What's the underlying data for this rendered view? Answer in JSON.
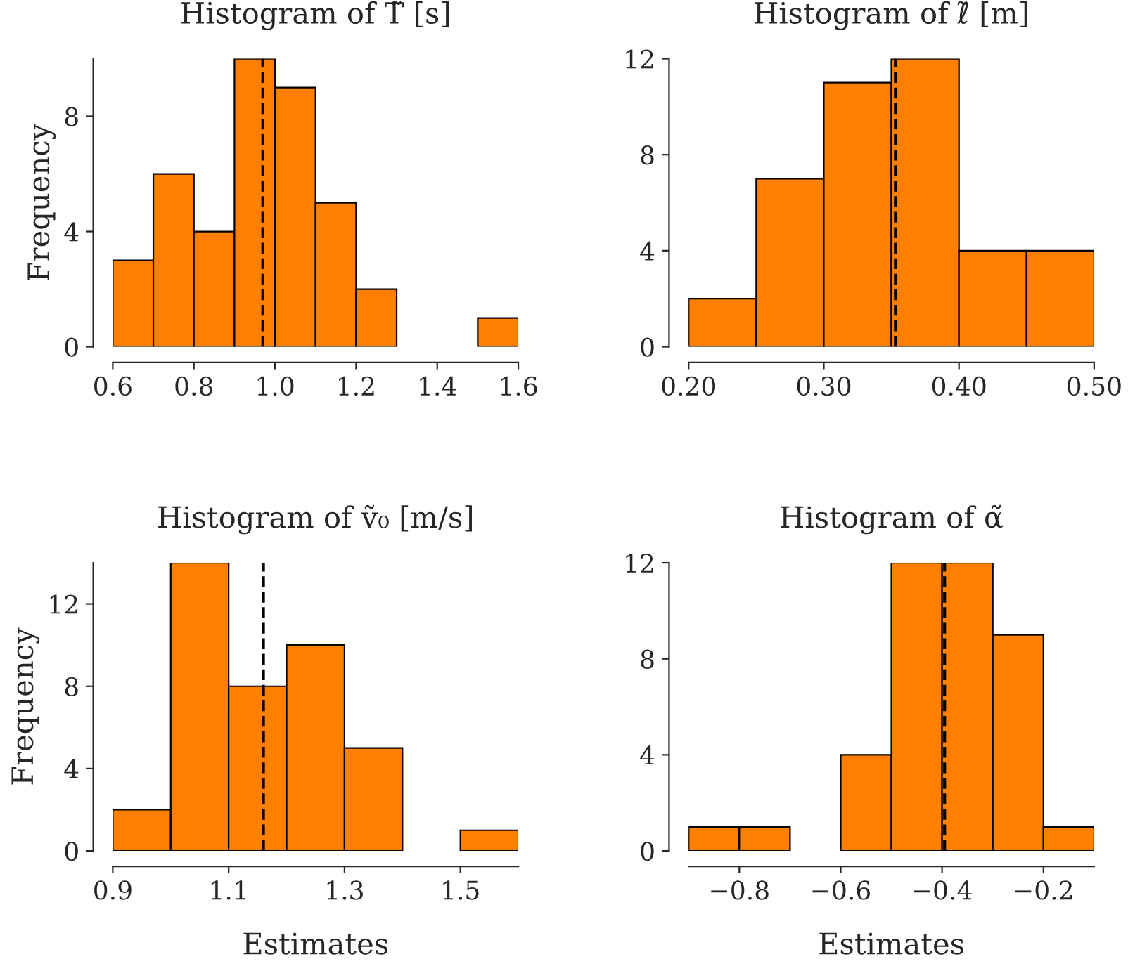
{
  "chart_data": [
    {
      "type": "histogram",
      "title": "Histogram of T̃ [s]",
      "ylabel": "Frequency",
      "color": "#ff8000",
      "bins": [
        0.6,
        0.7,
        0.8,
        0.9,
        1.0,
        1.1,
        1.2,
        1.3,
        1.4,
        1.5,
        1.6
      ],
      "values": [
        3,
        6,
        4,
        10,
        9,
        5,
        2,
        0,
        0,
        1
      ],
      "xlim": [
        0.6,
        1.6
      ],
      "ylim": [
        0,
        10
      ],
      "xticks": [
        0.6,
        0.8,
        {
          "value": 1.0,
          "label": "1.0"
        },
        1.2,
        1.4,
        1.6
      ],
      "yticks": [
        0,
        4,
        8
      ],
      "ref_lines": [
        {
          "axis": "x",
          "value": 0.97,
          "color": "#000000",
          "line_style": "dashed"
        }
      ],
      "grid": false,
      "legend": false
    },
    {
      "type": "histogram",
      "title": "Histogram of ℓ̃ [m]",
      "color": "#ff8000",
      "bins": [
        0.2,
        0.25,
        0.3,
        0.35,
        0.4,
        0.45,
        0.5
      ],
      "values": [
        2,
        7,
        11,
        12,
        4,
        4
      ],
      "xlim": [
        0.2,
        0.5
      ],
      "ylim": [
        0,
        12
      ],
      "xticks": [
        {
          "value": 0.2,
          "label": "0.20"
        },
        {
          "value": 0.3,
          "label": "0.30"
        },
        {
          "value": 0.4,
          "label": "0.40"
        },
        {
          "value": 0.5,
          "label": "0.50"
        }
      ],
      "yticks": [
        0,
        4,
        8,
        12
      ],
      "ref_lines": [
        {
          "axis": "x",
          "value": 0.353,
          "color": "#000000",
          "line_style": "dashed"
        }
      ],
      "grid": false,
      "legend": false
    },
    {
      "type": "histogram",
      "title": "Histogram of ṽ₀ [m/s]",
      "xlabel": "Estimates",
      "ylabel": "Frequency",
      "color": "#ff8000",
      "bins": [
        0.9,
        1.0,
        1.1,
        1.2,
        1.3,
        1.4,
        1.5,
        1.6
      ],
      "values": [
        2,
        14,
        8,
        10,
        5,
        0,
        1
      ],
      "xlim": [
        0.9,
        1.6
      ],
      "ylim": [
        0,
        14
      ],
      "xticks": [
        0.9,
        1.1,
        1.3,
        1.5
      ],
      "yticks": [
        0,
        4,
        8,
        12
      ],
      "ref_lines": [
        {
          "axis": "x",
          "value": 1.16,
          "color": "#000000",
          "line_style": "dashed"
        }
      ],
      "grid": false,
      "legend": false
    },
    {
      "type": "histogram",
      "title": "Histogram of α̃",
      "xlabel": "Estimates",
      "color": "#ff8000",
      "bins": [
        -0.9,
        -0.8,
        -0.7,
        -0.6,
        -0.5,
        -0.4,
        -0.3,
        -0.2,
        -0.1
      ],
      "values": [
        1,
        1,
        0,
        4,
        12,
        12,
        9,
        1
      ],
      "xlim": [
        -0.9,
        -0.1
      ],
      "ylim": [
        0,
        12
      ],
      "xticks": [
        {
          "value": -0.8,
          "label": "−0.8"
        },
        {
          "value": -0.6,
          "label": "−0.6"
        },
        {
          "value": -0.4,
          "label": "−0.4"
        },
        {
          "value": -0.2,
          "label": "−0.2"
        }
      ],
      "yticks": [
        0,
        4,
        8,
        12
      ],
      "ref_lines": [
        {
          "axis": "x",
          "value": -0.395,
          "color": "#000000",
          "line_style": "dashed"
        }
      ],
      "grid": false,
      "legend": false
    }
  ]
}
